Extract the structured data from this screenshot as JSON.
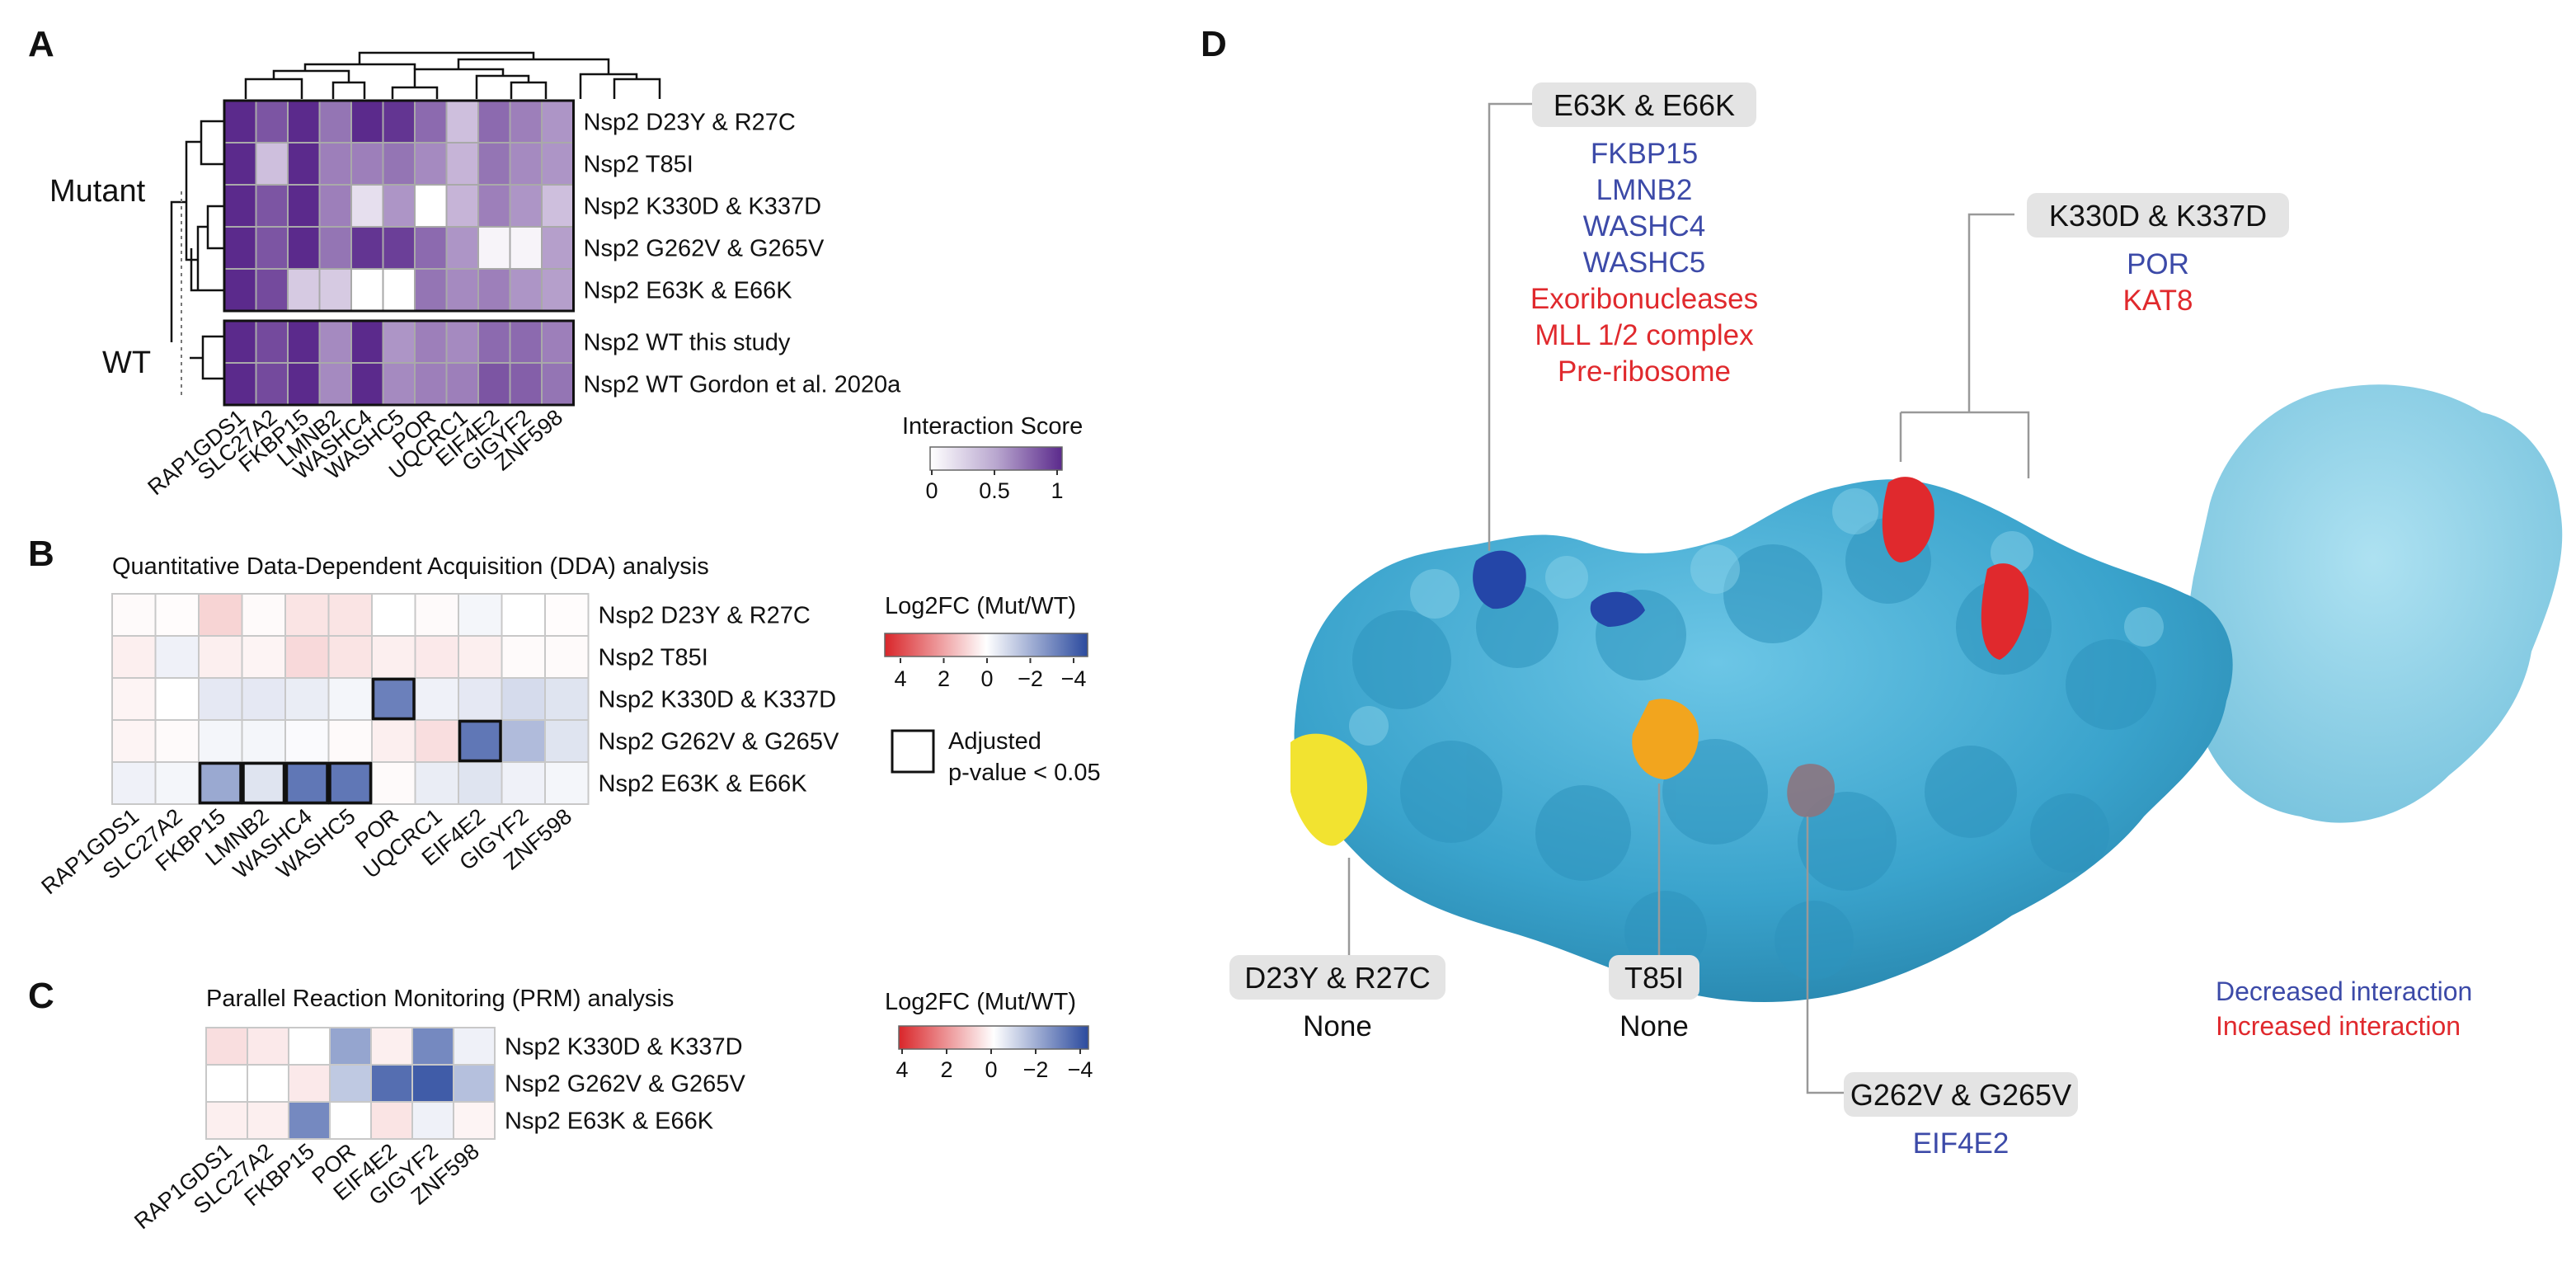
{
  "panels": {
    "A": "A",
    "B": "B",
    "C": "C",
    "D": "D"
  },
  "colors": {
    "score_low": "#ffffff",
    "score_high": "#5b2a8c",
    "fc_pos": "#d9262a",
    "fc_neg": "#2b4a9e",
    "surface": "#4bb3d8",
    "decreased": "#3c4aa8",
    "increased": "#e0292d",
    "yellow_site": "#f2e330",
    "orange_site": "#f2a51e"
  },
  "chart_data": [
    {
      "type": "heatmap",
      "panel": "A",
      "title": "",
      "groups": [
        "Mutant",
        "WT"
      ],
      "columns": [
        "RAP1GDS1",
        "SLC27A2",
        "FKBP15",
        "LMNB2",
        "WASHC4",
        "WASHC5",
        "POR",
        "UQCRC1",
        "EIF4E2",
        "GIGYF2",
        "ZNF598"
      ],
      "rows": [
        "Nsp2 D23Y & R27C",
        "Nsp2 T85I",
        "Nsp2 K330D & K337D",
        "Nsp2 G262V & G265V",
        "Nsp2 E63K & E66K",
        "Nsp2 WT this study",
        "Nsp2 WT Gordon et al. 2020a"
      ],
      "values": [
        [
          1.0,
          0.8,
          1.0,
          0.65,
          1.0,
          0.95,
          0.7,
          0.3,
          0.7,
          0.6,
          0.5
        ],
        [
          1.0,
          0.3,
          1.0,
          0.6,
          0.6,
          0.65,
          0.55,
          0.35,
          0.65,
          0.55,
          0.5
        ],
        [
          1.0,
          0.8,
          1.0,
          0.6,
          0.15,
          0.5,
          0.0,
          0.35,
          0.6,
          0.5,
          0.3
        ],
        [
          1.0,
          0.8,
          1.0,
          0.65,
          0.95,
          0.9,
          0.7,
          0.5,
          0.05,
          0.05,
          0.45
        ],
        [
          1.0,
          0.85,
          0.25,
          0.25,
          0.0,
          0.0,
          0.65,
          0.55,
          0.6,
          0.5,
          0.45
        ],
        [
          1.0,
          0.85,
          1.0,
          0.55,
          1.0,
          0.5,
          0.6,
          0.55,
          0.7,
          0.7,
          0.6
        ],
        [
          1.0,
          0.85,
          1.0,
          0.55,
          1.0,
          0.55,
          0.6,
          0.6,
          0.8,
          0.75,
          0.65
        ]
      ],
      "colorbar": {
        "title": "Interaction Score",
        "ticks": [
          "0",
          "0.5",
          "1"
        ],
        "range": [
          0,
          1
        ]
      }
    },
    {
      "type": "heatmap",
      "panel": "B",
      "title": "Quantitative Data-Dependent Acquisition (DDA) analysis",
      "columns": [
        "RAP1GDS1",
        "SLC27A2",
        "FKBP15",
        "LMNB2",
        "WASHC4",
        "WASHC5",
        "POR",
        "UQCRC1",
        "EIF4E2",
        "GIGYF2",
        "ZNF598"
      ],
      "rows": [
        "Nsp2 D23Y & R27C",
        "Nsp2 T85I",
        "Nsp2 K330D & K337D",
        "Nsp2 G262V & G265V",
        "Nsp2 E63K & E66K"
      ],
      "values": [
        [
          0.1,
          0.05,
          0.8,
          0.1,
          0.5,
          0.5,
          0.0,
          0.1,
          -0.2,
          0.0,
          0.05
        ],
        [
          0.3,
          -0.3,
          0.3,
          0.2,
          0.7,
          0.5,
          0.3,
          0.4,
          0.3,
          0.1,
          0.1
        ],
        [
          0.2,
          0.0,
          -0.5,
          -0.5,
          -0.4,
          -0.2,
          -2.8,
          -0.3,
          -0.5,
          -0.8,
          -0.6
        ],
        [
          0.2,
          0.1,
          -0.2,
          -0.2,
          -0.1,
          0.1,
          0.3,
          0.6,
          -3.0,
          -1.5,
          -0.6
        ],
        [
          -0.3,
          -0.2,
          -1.9,
          -0.6,
          -3.0,
          -3.0,
          0.1,
          -0.4,
          -0.6,
          -0.3,
          -0.2
        ]
      ],
      "significant": [
        [
          2,
          6
        ],
        [
          3,
          8
        ],
        [
          4,
          2
        ],
        [
          4,
          3
        ],
        [
          4,
          4
        ],
        [
          4,
          5
        ]
      ],
      "colorbar": {
        "title": "Log2FC (Mut/WT)",
        "ticks": [
          "4",
          "2",
          "0",
          "−2",
          "−4"
        ],
        "range": [
          4,
          -4
        ]
      },
      "sig_legend": [
        "Adjusted",
        "p-value < 0.05"
      ]
    },
    {
      "type": "heatmap",
      "panel": "C",
      "title": "Parallel Reaction Monitoring (PRM) analysis",
      "columns": [
        "RAP1GDS1",
        "SLC27A2",
        "FKBP15",
        "POR",
        "EIF4E2",
        "GIGYF2",
        "ZNF598"
      ],
      "rows": [
        "Nsp2 K330D & K337D",
        "Nsp2 G262V & G265V",
        "Nsp2 E63K & E66K"
      ],
      "values": [
        [
          0.6,
          0.4,
          0.0,
          -2.0,
          0.3,
          -2.6,
          -0.3
        ],
        [
          0.0,
          0.0,
          0.4,
          -1.2,
          -3.2,
          -3.6,
          -1.4
        ],
        [
          0.3,
          0.3,
          -2.6,
          0.0,
          0.5,
          -0.3,
          0.2
        ]
      ],
      "colorbar": {
        "title": "Log2FC (Mut/WT)",
        "ticks": [
          "4",
          "2",
          "0",
          "−2",
          "−4"
        ],
        "range": [
          4,
          -4
        ]
      }
    }
  ],
  "structure": {
    "callouts": [
      {
        "id": "e63k",
        "title": "E63K & E66K",
        "items": [
          {
            "text": "FKBP15",
            "kind": "decreased"
          },
          {
            "text": "LMNB2",
            "kind": "decreased"
          },
          {
            "text": "WASHC4",
            "kind": "decreased"
          },
          {
            "text": "WASHC5",
            "kind": "decreased"
          },
          {
            "text": "Exoribonucleases",
            "kind": "increased"
          },
          {
            "text": "MLL 1/2 complex",
            "kind": "increased"
          },
          {
            "text": "Pre-ribosome",
            "kind": "increased"
          }
        ]
      },
      {
        "id": "k330d",
        "title": "K330D & K337D",
        "items": [
          {
            "text": "POR",
            "kind": "decreased"
          },
          {
            "text": "KAT8",
            "kind": "increased"
          }
        ]
      },
      {
        "id": "d23y",
        "title": "D23Y & R27C",
        "items": [
          {
            "text": "None",
            "kind": "none"
          }
        ]
      },
      {
        "id": "t85i",
        "title": "T85I",
        "items": [
          {
            "text": "None",
            "kind": "none"
          }
        ]
      },
      {
        "id": "g262v",
        "title": "G262V & G265V",
        "items": [
          {
            "text": "EIF4E2",
            "kind": "decreased"
          }
        ]
      }
    ],
    "legend": {
      "decreased": "Decreased interaction",
      "increased": "Increased interaction"
    }
  }
}
